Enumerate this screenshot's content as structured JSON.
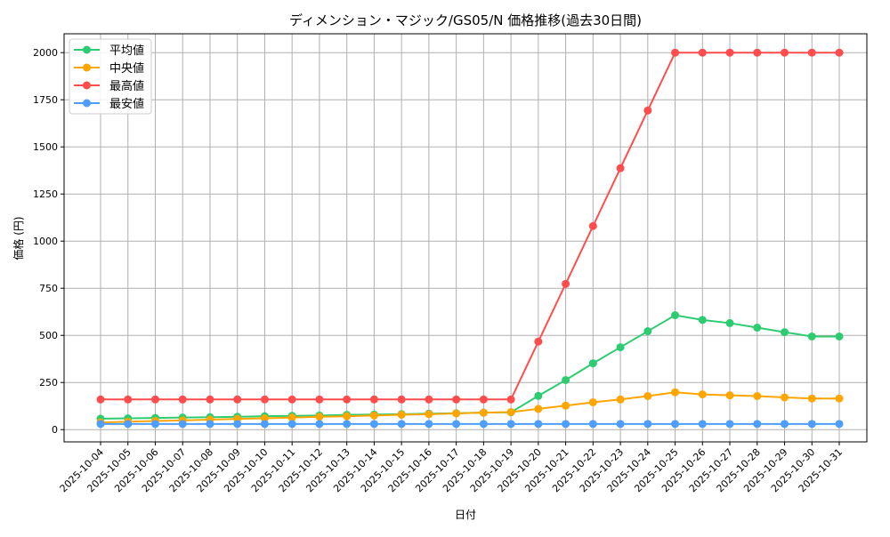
{
  "chart_data": {
    "type": "line",
    "title": "ディメンション・マジック/GS05/N 価格推移(過去30日間)",
    "xlabel": "日付",
    "ylabel": "価格 (円)",
    "ylim": [
      -65,
      2100
    ],
    "yticks": [
      0,
      250,
      500,
      750,
      1000,
      1250,
      1500,
      1750,
      2000
    ],
    "grid": true,
    "legend_position": "top-left",
    "categories": [
      "2025-10-04",
      "2025-10-05",
      "2025-10-06",
      "2025-10-07",
      "2025-10-08",
      "2025-10-09",
      "2025-10-10",
      "2025-10-11",
      "2025-10-12",
      "2025-10-13",
      "2025-10-14",
      "2025-10-15",
      "2025-10-16",
      "2025-10-17",
      "2025-10-18",
      "2025-10-19",
      "2025-10-20",
      "2025-10-21",
      "2025-10-22",
      "2025-10-23",
      "2025-10-24",
      "2025-10-25",
      "2025-10-26",
      "2025-10-27",
      "2025-10-28",
      "2025-10-29",
      "2025-10-30",
      "2025-10-31"
    ],
    "series": [
      {
        "name": "平均値",
        "color": "#2ecc71",
        "values": [
          58,
          60,
          62,
          64,
          66,
          68,
          71,
          73,
          75,
          78,
          80,
          82,
          85,
          87,
          90,
          92,
          179,
          263,
          352,
          437,
          522,
          607,
          582,
          565,
          541,
          517,
          494,
          494
        ]
      },
      {
        "name": "中央値",
        "color": "#ffa500",
        "values": [
          38,
          42,
          46,
          49,
          53,
          57,
          60,
          64,
          68,
          71,
          75,
          79,
          82,
          86,
          90,
          93,
          110,
          127,
          145,
          160,
          178,
          198,
          187,
          182,
          178,
          171,
          165,
          165
        ]
      },
      {
        "name": "最高値",
        "color": "#ff4d4d",
        "values": [
          160,
          160,
          160,
          160,
          160,
          160,
          160,
          160,
          160,
          160,
          160,
          160,
          160,
          160,
          160,
          160,
          467,
          773,
          1080,
          1387,
          1693,
          2000,
          2000,
          2000,
          2000,
          2000,
          2000,
          2000
        ]
      },
      {
        "name": "最安値",
        "color": "#4d9eff",
        "values": [
          30,
          30,
          30,
          30,
          30,
          30,
          30,
          30,
          30,
          30,
          30,
          30,
          30,
          30,
          30,
          30,
          30,
          30,
          30,
          30,
          30,
          30,
          30,
          30,
          30,
          30,
          30,
          30
        ]
      }
    ]
  }
}
